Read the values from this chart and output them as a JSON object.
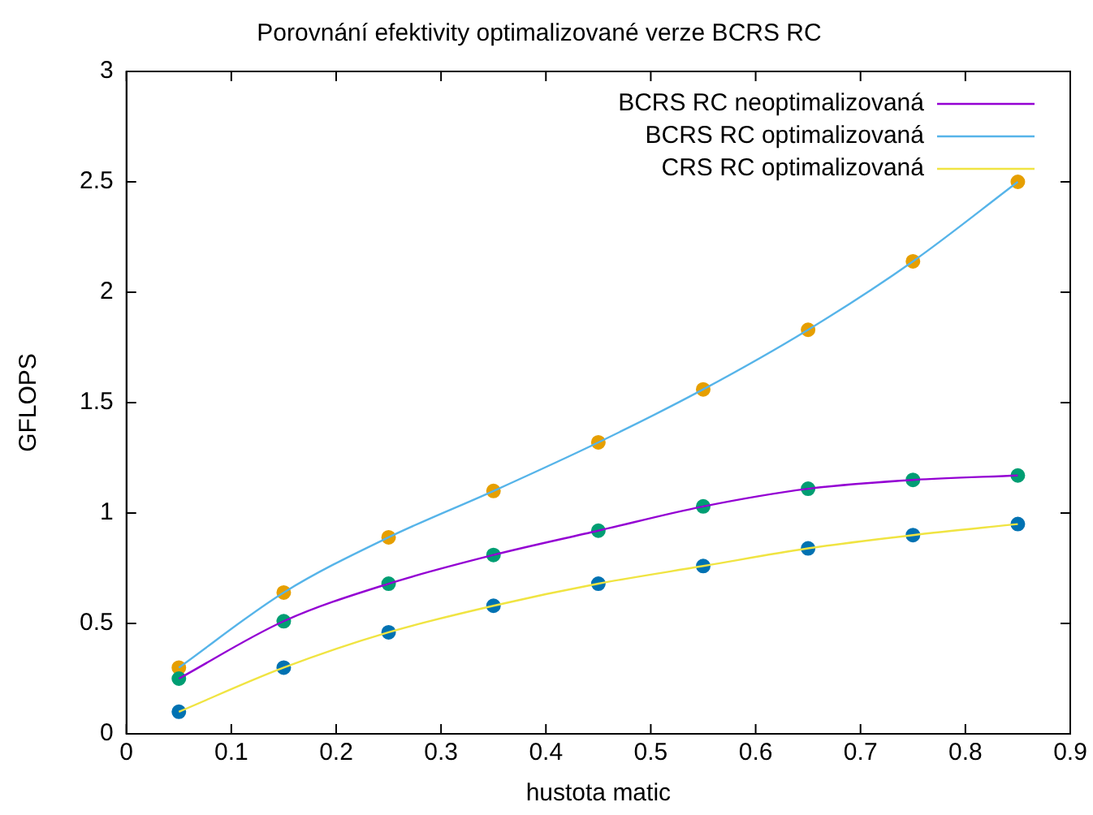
{
  "chart_data": {
    "type": "line",
    "title": "Porovnání efektivity optimalizované verze BCRS RC",
    "xlabel": "hustota matic",
    "ylabel": "GFLOPS",
    "x": [
      0.05,
      0.15,
      0.25,
      0.35,
      0.45,
      0.55,
      0.65,
      0.75,
      0.85
    ],
    "xlim": [
      0,
      0.9
    ],
    "xticks": [
      0,
      0.1,
      0.2,
      0.3,
      0.4,
      0.5,
      0.6,
      0.7,
      0.8,
      0.9
    ],
    "ylim": [
      0,
      3
    ],
    "yticks": [
      0,
      0.5,
      1,
      1.5,
      2,
      2.5,
      3
    ],
    "grid": false,
    "legend": "top right",
    "series": [
      {
        "name": "BCRS RC neoptimalizovaná",
        "type": "line",
        "marker": "none",
        "color": "#9400d3",
        "values": [
          0.25,
          0.51,
          0.68,
          0.81,
          0.92,
          1.03,
          1.11,
          1.15,
          1.17
        ]
      },
      {
        "name": "BCRS RC optimalizovaná",
        "type": "line",
        "marker": "none",
        "color": "#56b4e9",
        "values": [
          0.3,
          0.64,
          0.89,
          1.1,
          1.32,
          1.56,
          1.83,
          2.14,
          2.5
        ]
      },
      {
        "name": "CRS RC optimalizovaná",
        "type": "line",
        "marker": "none",
        "color": "#f0e442",
        "values": [
          0.1,
          0.3,
          0.46,
          0.58,
          0.68,
          0.76,
          0.84,
          0.9,
          0.95
        ]
      },
      {
        "type": "scatter",
        "marker": "circle",
        "color": "#009e73",
        "values": [
          0.25,
          0.51,
          0.68,
          0.81,
          0.92,
          1.03,
          1.11,
          1.15,
          1.17
        ]
      },
      {
        "type": "scatter",
        "marker": "circle",
        "color": "#e69f00",
        "values": [
          0.3,
          0.64,
          0.89,
          1.1,
          1.32,
          1.56,
          1.83,
          2.14,
          2.5
        ]
      },
      {
        "type": "scatter",
        "marker": "circle",
        "color": "#0072b2",
        "values": [
          0.1,
          0.3,
          0.46,
          0.58,
          0.68,
          0.76,
          0.84,
          0.9,
          0.95
        ]
      }
    ]
  }
}
